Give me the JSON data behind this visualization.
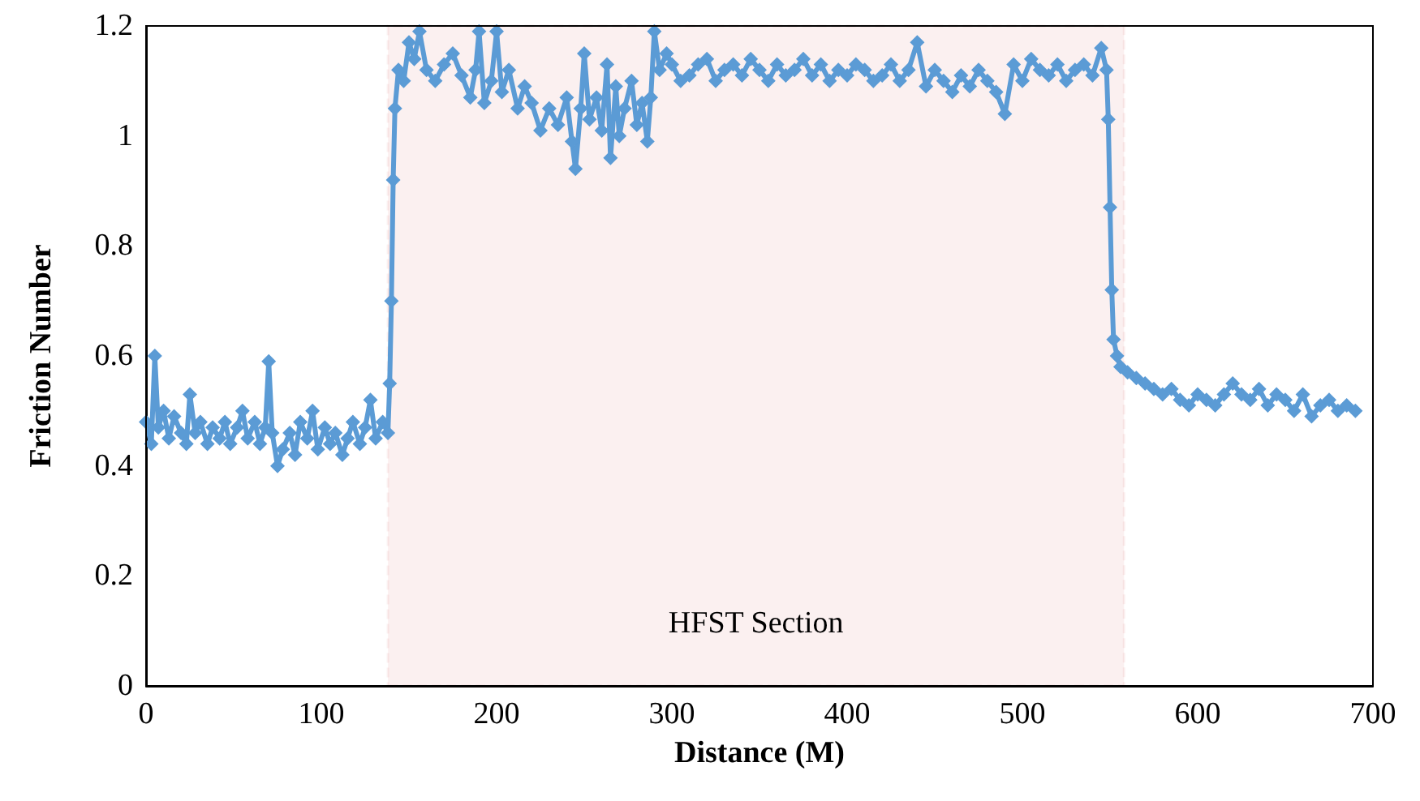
{
  "chart_data": {
    "type": "line",
    "xlabel": "Distance (M)",
    "ylabel": "Friction Number",
    "x": [
      0,
      3,
      5,
      7,
      10,
      13,
      16,
      20,
      23,
      25,
      28,
      31,
      35,
      38,
      42,
      45,
      48,
      52,
      55,
      58,
      62,
      65,
      68,
      70,
      72,
      75,
      78,
      82,
      85,
      88,
      92,
      95,
      98,
      102,
      105,
      108,
      112,
      115,
      118,
      122,
      125,
      128,
      131,
      135,
      138,
      139,
      140,
      141,
      142,
      144,
      147,
      150,
      153,
      156,
      160,
      165,
      170,
      175,
      180,
      185,
      188,
      190,
      193,
      197,
      200,
      203,
      207,
      212,
      216,
      220,
      225,
      230,
      235,
      240,
      243,
      245,
      248,
      250,
      253,
      257,
      260,
      263,
      265,
      268,
      270,
      273,
      277,
      280,
      283,
      286,
      288,
      290,
      293,
      297,
      300,
      305,
      310,
      315,
      320,
      325,
      330,
      335,
      340,
      345,
      350,
      355,
      360,
      365,
      370,
      375,
      380,
      385,
      390,
      395,
      400,
      405,
      410,
      415,
      420,
      425,
      430,
      435,
      440,
      445,
      450,
      455,
      460,
      465,
      470,
      475,
      480,
      485,
      490,
      495,
      500,
      505,
      510,
      515,
      520,
      525,
      530,
      535,
      540,
      545,
      548,
      549,
      550,
      551,
      552,
      554,
      556,
      560,
      565,
      570,
      575,
      580,
      585,
      590,
      595,
      600,
      605,
      610,
      615,
      620,
      625,
      630,
      635,
      640,
      645,
      650,
      655,
      660,
      665,
      670,
      675,
      680,
      685,
      690
    ],
    "series": [
      {
        "color": "#5b9bd5",
        "values": [
          0.48,
          0.44,
          0.6,
          0.47,
          0.5,
          0.45,
          0.49,
          0.46,
          0.44,
          0.53,
          0.46,
          0.48,
          0.44,
          0.47,
          0.45,
          0.48,
          0.44,
          0.47,
          0.5,
          0.45,
          0.48,
          0.44,
          0.47,
          0.59,
          0.46,
          0.4,
          0.43,
          0.46,
          0.42,
          0.48,
          0.45,
          0.5,
          0.43,
          0.47,
          0.44,
          0.46,
          0.42,
          0.45,
          0.48,
          0.44,
          0.47,
          0.52,
          0.45,
          0.48,
          0.46,
          0.55,
          0.7,
          0.92,
          1.05,
          1.12,
          1.1,
          1.17,
          1.14,
          1.19,
          1.12,
          1.1,
          1.13,
          1.15,
          1.11,
          1.07,
          1.12,
          1.19,
          1.06,
          1.1,
          1.19,
          1.08,
          1.12,
          1.05,
          1.09,
          1.06,
          1.01,
          1.05,
          1.02,
          1.07,
          0.99,
          0.94,
          1.05,
          1.15,
          1.03,
          1.07,
          1.01,
          1.13,
          0.96,
          1.09,
          1.0,
          1.05,
          1.1,
          1.02,
          1.06,
          0.99,
          1.07,
          1.19,
          1.12,
          1.15,
          1.13,
          1.1,
          1.11,
          1.13,
          1.14,
          1.1,
          1.12,
          1.13,
          1.11,
          1.14,
          1.12,
          1.1,
          1.13,
          1.11,
          1.12,
          1.14,
          1.11,
          1.13,
          1.1,
          1.12,
          1.11,
          1.13,
          1.12,
          1.1,
          1.11,
          1.13,
          1.1,
          1.12,
          1.17,
          1.09,
          1.12,
          1.1,
          1.08,
          1.11,
          1.09,
          1.12,
          1.1,
          1.08,
          1.04,
          1.13,
          1.1,
          1.14,
          1.12,
          1.11,
          1.13,
          1.1,
          1.12,
          1.13,
          1.11,
          1.16,
          1.12,
          1.03,
          0.87,
          0.72,
          0.63,
          0.6,
          0.58,
          0.57,
          0.56,
          0.55,
          0.54,
          0.53,
          0.54,
          0.52,
          0.51,
          0.53,
          0.52,
          0.51,
          0.53,
          0.55,
          0.53,
          0.52,
          0.54,
          0.51,
          0.53,
          0.52,
          0.5,
          0.53,
          0.49,
          0.51,
          0.52,
          0.5,
          0.51,
          0.5
        ]
      }
    ],
    "xlim": [
      0,
      700
    ],
    "xticks": [
      0,
      100,
      200,
      300,
      400,
      500,
      600,
      700
    ],
    "ylim": [
      0,
      1.2
    ],
    "yticks": [
      0,
      0.2,
      0.4,
      0.6,
      0.8,
      1,
      1.2
    ],
    "grid": false,
    "marker": "diamond",
    "line_style": "solid",
    "bands": [
      {
        "axis": "x",
        "from": 138,
        "to": 558,
        "label": "HFST Section",
        "color": "#c00000"
      }
    ]
  }
}
